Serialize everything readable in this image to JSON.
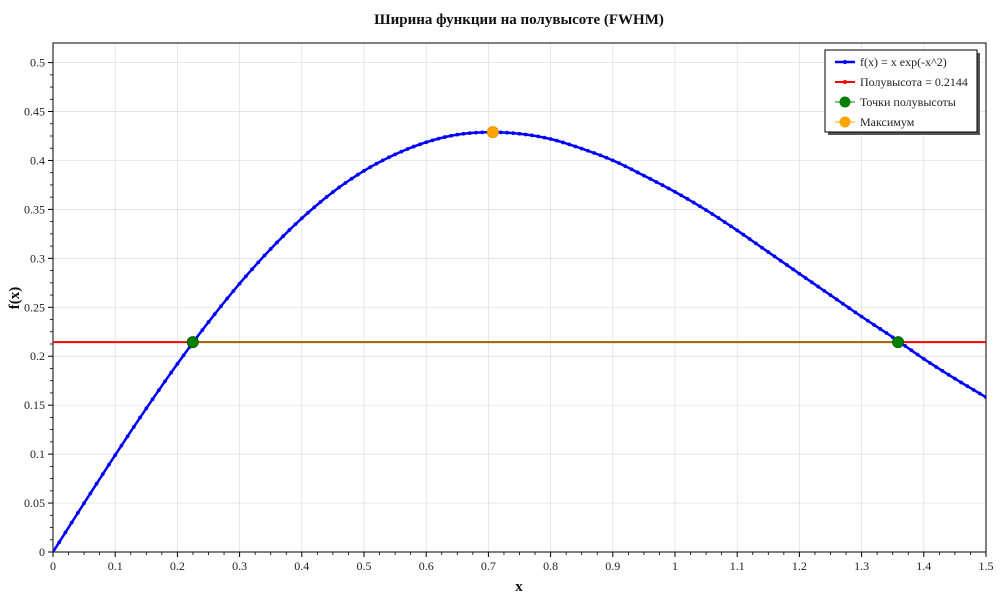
{
  "chart_data": {
    "type": "line",
    "title": "Ширина функции на полувысоте (FWHM)",
    "xlabel": "x",
    "ylabel": "f(x)",
    "xlim": [
      0,
      1.5
    ],
    "ylim": [
      0,
      0.52
    ],
    "x_ticks": [
      0,
      0.1,
      0.2,
      0.3,
      0.4,
      0.5,
      0.6,
      0.7,
      0.8,
      0.9,
      1,
      1.1,
      1.2,
      1.3,
      1.4,
      1.5
    ],
    "y_ticks": [
      0,
      0.05,
      0.1,
      0.15,
      0.2,
      0.25,
      0.3,
      0.35,
      0.4,
      0.45,
      0.5
    ],
    "grid": true,
    "legend_position": "top-right",
    "series": [
      {
        "name": "f(x) = x   exp(-x^2)",
        "color": "#0000ff",
        "x": [
          0,
          0.05,
          0.1,
          0.15,
          0.2,
          0.25,
          0.3,
          0.35,
          0.4,
          0.45,
          0.5,
          0.55,
          0.6,
          0.65,
          0.7,
          0.75,
          0.8,
          0.85,
          0.9,
          0.95,
          1.0,
          1.05,
          1.1,
          1.15,
          1.2,
          1.25,
          1.3,
          1.35,
          1.4,
          1.45,
          1.5
        ],
        "y": [
          0,
          0.0499,
          0.099,
          0.1467,
          0.1922,
          0.2349,
          0.2742,
          0.3096,
          0.3409,
          0.3677,
          0.3894,
          0.4062,
          0.4186,
          0.4264,
          0.4288,
          0.4273,
          0.4219,
          0.4121,
          0.4001,
          0.3845,
          0.3679,
          0.3493,
          0.3285,
          0.3064,
          0.2843,
          0.2624,
          0.2405,
          0.2194,
          0.1973,
          0.1771,
          0.1581
        ]
      },
      {
        "name": "Полувысота = 0.2144",
        "color": "#ff0000",
        "x": [
          0,
          1.5
        ],
        "y": [
          0.2144,
          0.2144
        ]
      },
      {
        "name": "Точки полувысоты",
        "color": "#008000",
        "x": [
          0.2247,
          1.3586
        ],
        "y": [
          0.2144,
          0.2144
        ]
      },
      {
        "name": "Максимум",
        "color": "#ffa500",
        "x": [
          0.7071
        ],
        "y": [
          0.4289
        ]
      }
    ],
    "fwhm_segment": {
      "color": "#808000",
      "x": [
        0.2247,
        1.3586
      ],
      "y": [
        0.2144,
        0.2144
      ]
    }
  }
}
